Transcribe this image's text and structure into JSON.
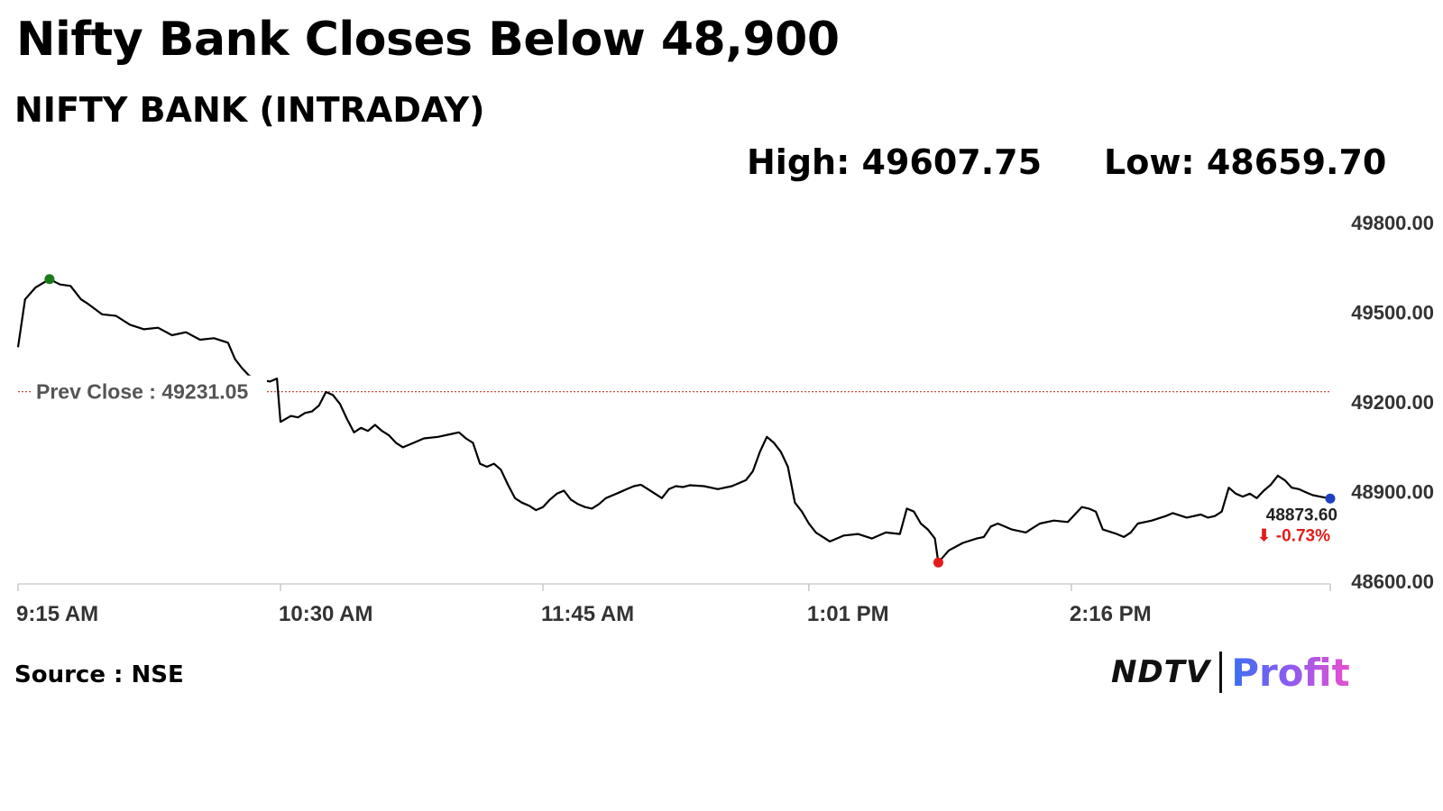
{
  "headline": "Nifty Bank Closes Below 48,900",
  "chart_data": {
    "type": "line",
    "title": "NIFTY BANK (INTRADAY)",
    "stats": {
      "high": "High: 49607.75",
      "low": "Low: 48659.70"
    },
    "ylim": [
      48600,
      49800
    ],
    "yticks": [
      "49800.00",
      "49500.00",
      "49200.00",
      "48900.00",
      "48600.00"
    ],
    "ytick_values": [
      49800,
      49500,
      49200,
      48900,
      48600
    ],
    "xticks": [
      "9:15 AM",
      "10:30 AM",
      "11:45 AM",
      "1:01 PM",
      "2:16 PM"
    ],
    "xtick_minutes": [
      0,
      75,
      150,
      226,
      301
    ],
    "x_range_minutes": [
      0,
      375
    ],
    "prev_close": {
      "value": 49231.05,
      "label": "Prev Close : 49231.05"
    },
    "high_point": {
      "minute": 9,
      "value": 49607.75
    },
    "low_point": {
      "minute": 263,
      "value": 48659.7
    },
    "last": {
      "minute": 375,
      "value": 48873.6,
      "label": "48873.60",
      "change": "-0.73%",
      "arrow": "⬇"
    },
    "series": [
      {
        "values": [
          [
            0,
            49380
          ],
          [
            2,
            49540
          ],
          [
            5,
            49580
          ],
          [
            9,
            49607.75
          ],
          [
            12,
            49590
          ],
          [
            15,
            49585
          ],
          [
            18,
            49540
          ],
          [
            20,
            49525
          ],
          [
            24,
            49490
          ],
          [
            28,
            49485
          ],
          [
            32,
            49455
          ],
          [
            36,
            49440
          ],
          [
            40,
            49445
          ],
          [
            44,
            49420
          ],
          [
            48,
            49430
          ],
          [
            52,
            49405
          ],
          [
            56,
            49410
          ],
          [
            60,
            49395
          ],
          [
            62,
            49340
          ],
          [
            64,
            49310
          ],
          [
            66,
            49285
          ],
          [
            68,
            49275
          ],
          [
            70,
            49270
          ],
          [
            72,
            49265
          ],
          [
            74,
            49275
          ],
          [
            75,
            49130
          ],
          [
            78,
            49150
          ],
          [
            80,
            49145
          ],
          [
            82,
            49160
          ],
          [
            84,
            49165
          ],
          [
            86,
            49185
          ],
          [
            88,
            49230
          ],
          [
            90,
            49220
          ],
          [
            92,
            49190
          ],
          [
            94,
            49140
          ],
          [
            96,
            49095
          ],
          [
            98,
            49110
          ],
          [
            100,
            49100
          ],
          [
            102,
            49120
          ],
          [
            104,
            49100
          ],
          [
            106,
            49085
          ],
          [
            108,
            49060
          ],
          [
            110,
            49045
          ],
          [
            112,
            49055
          ],
          [
            116,
            49075
          ],
          [
            120,
            49080
          ],
          [
            124,
            49090
          ],
          [
            126,
            49095
          ],
          [
            128,
            49075
          ],
          [
            130,
            49060
          ],
          [
            132,
            48990
          ],
          [
            134,
            48980
          ],
          [
            136,
            48990
          ],
          [
            138,
            48970
          ],
          [
            140,
            48920
          ],
          [
            142,
            48875
          ],
          [
            144,
            48860
          ],
          [
            146,
            48850
          ],
          [
            148,
            48835
          ],
          [
            150,
            48845
          ],
          [
            152,
            48870
          ],
          [
            154,
            48890
          ],
          [
            156,
            48900
          ],
          [
            158,
            48870
          ],
          [
            160,
            48855
          ],
          [
            162,
            48845
          ],
          [
            164,
            48840
          ],
          [
            166,
            48855
          ],
          [
            168,
            48875
          ],
          [
            170,
            48885
          ],
          [
            172,
            48895
          ],
          [
            174,
            48905
          ],
          [
            176,
            48915
          ],
          [
            178,
            48920
          ],
          [
            180,
            48905
          ],
          [
            182,
            48890
          ],
          [
            184,
            48875
          ],
          [
            186,
            48905
          ],
          [
            188,
            48915
          ],
          [
            190,
            48912
          ],
          [
            192,
            48918
          ],
          [
            196,
            48915
          ],
          [
            200,
            48905
          ],
          [
            204,
            48915
          ],
          [
            208,
            48935
          ],
          [
            210,
            48965
          ],
          [
            212,
            49030
          ],
          [
            214,
            49080
          ],
          [
            216,
            49060
          ],
          [
            218,
            49030
          ],
          [
            220,
            48980
          ],
          [
            222,
            48860
          ],
          [
            224,
            48830
          ],
          [
            226,
            48790
          ],
          [
            228,
            48760
          ],
          [
            230,
            48745
          ],
          [
            232,
            48730
          ],
          [
            236,
            48750
          ],
          [
            240,
            48755
          ],
          [
            244,
            48740
          ],
          [
            248,
            48760
          ],
          [
            252,
            48755
          ],
          [
            254,
            48840
          ],
          [
            256,
            48830
          ],
          [
            258,
            48790
          ],
          [
            260,
            48770
          ],
          [
            262,
            48740
          ],
          [
            263,
            48659.7
          ],
          [
            266,
            48700
          ],
          [
            270,
            48725
          ],
          [
            274,
            48740
          ],
          [
            276,
            48745
          ],
          [
            278,
            48780
          ],
          [
            280,
            48790
          ],
          [
            284,
            48770
          ],
          [
            288,
            48760
          ],
          [
            292,
            48790
          ],
          [
            296,
            48800
          ],
          [
            300,
            48795
          ],
          [
            304,
            48845
          ],
          [
            306,
            48840
          ],
          [
            308,
            48830
          ],
          [
            310,
            48770
          ],
          [
            314,
            48755
          ],
          [
            316,
            48745
          ],
          [
            318,
            48760
          ],
          [
            320,
            48790
          ],
          [
            324,
            48800
          ],
          [
            328,
            48815
          ],
          [
            330,
            48825
          ],
          [
            334,
            48810
          ],
          [
            338,
            48820
          ],
          [
            340,
            48810
          ],
          [
            342,
            48815
          ],
          [
            344,
            48830
          ],
          [
            346,
            48910
          ],
          [
            348,
            48890
          ],
          [
            350,
            48880
          ],
          [
            352,
            48890
          ],
          [
            354,
            48875
          ],
          [
            356,
            48900
          ],
          [
            358,
            48920
          ],
          [
            360,
            48950
          ],
          [
            362,
            48935
          ],
          [
            364,
            48910
          ],
          [
            366,
            48905
          ],
          [
            368,
            48895
          ],
          [
            370,
            48885
          ],
          [
            372,
            48880
          ],
          [
            375,
            48873.6
          ]
        ]
      }
    ]
  },
  "source": "Source : NSE",
  "logo": {
    "ndtv": "NDTV",
    "profit": "Profit"
  },
  "colors": {
    "line": "#000000",
    "prev_close": "#c0392b",
    "high": "#1a7a1a",
    "low": "#e31b1b",
    "last": "#1f3fbf",
    "change": "#e31b1b"
  }
}
